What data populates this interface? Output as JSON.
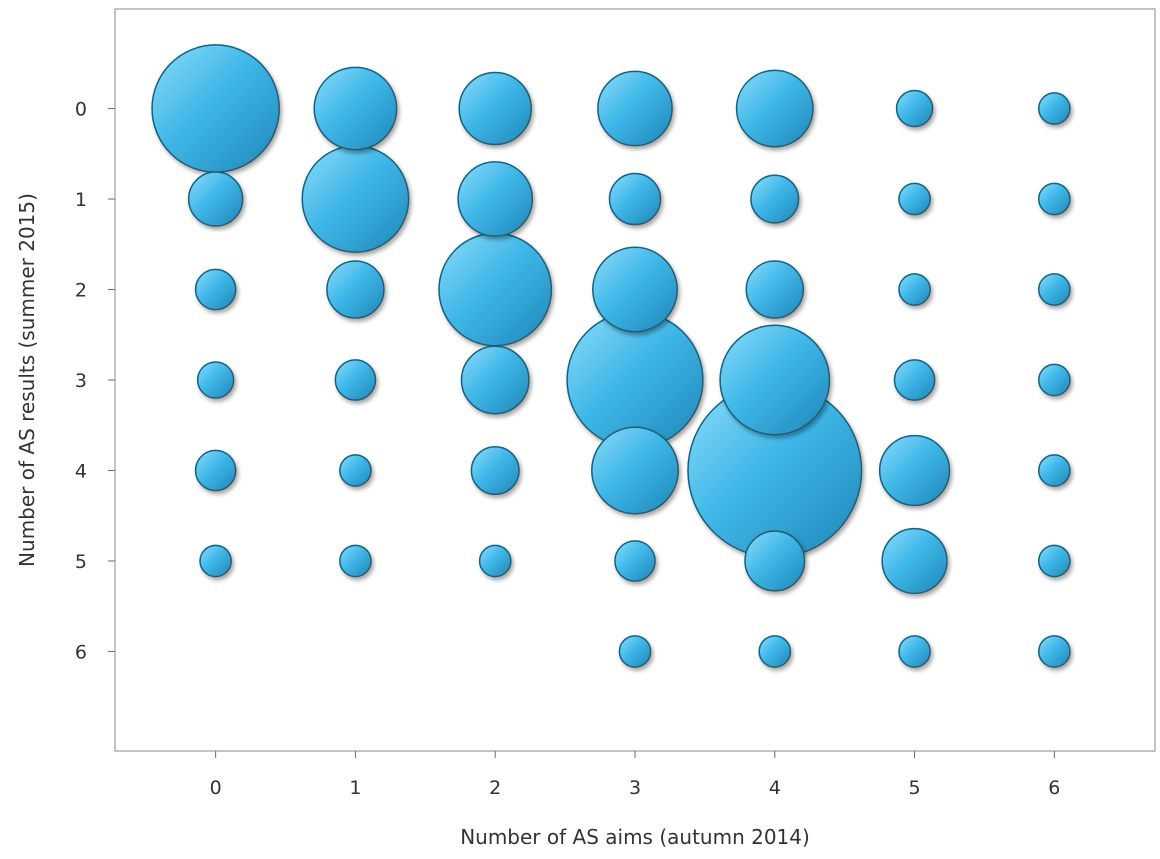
{
  "chart_data": {
    "type": "bubble",
    "title": "",
    "xlabel": "Number of AS aims (autumn 2014)",
    "ylabel": "Number of AS results (summer 2015)",
    "x_ticks": [
      "0",
      "1",
      "2",
      "3",
      "4",
      "5",
      "6"
    ],
    "y_ticks": [
      "0",
      "1",
      "2",
      "3",
      "4",
      "5",
      "6"
    ],
    "xlim": [
      -0.72,
      6.72
    ],
    "ylim": [
      -1.1,
      7.1
    ],
    "y_reversed": true,
    "grid": false,
    "bubble_color": "#3fb7e8",
    "bubble_edge_color": "#1f5f7a",
    "points": [
      {
        "x": 0,
        "y": 0,
        "size": 50
      },
      {
        "x": 1,
        "y": 0,
        "size": 21
      },
      {
        "x": 2,
        "y": 0,
        "size": 16
      },
      {
        "x": 3,
        "y": 0,
        "size": 17
      },
      {
        "x": 4,
        "y": 0,
        "size": 18
      },
      {
        "x": 5,
        "y": 0,
        "size": 4
      },
      {
        "x": 6,
        "y": 0,
        "size": 3
      },
      {
        "x": 0,
        "y": 1,
        "size": 9
      },
      {
        "x": 1,
        "y": 1,
        "size": 35
      },
      {
        "x": 2,
        "y": 1,
        "size": 17
      },
      {
        "x": 3,
        "y": 1,
        "size": 8
      },
      {
        "x": 4,
        "y": 1,
        "size": 7
      },
      {
        "x": 5,
        "y": 1,
        "size": 3
      },
      {
        "x": 6,
        "y": 1,
        "size": 3
      },
      {
        "x": 0,
        "y": 2,
        "size": 5
      },
      {
        "x": 1,
        "y": 2,
        "size": 10
      },
      {
        "x": 2,
        "y": 2,
        "size": 39
      },
      {
        "x": 3,
        "y": 2,
        "size": 22
      },
      {
        "x": 4,
        "y": 2,
        "size": 10
      },
      {
        "x": 5,
        "y": 2,
        "size": 3
      },
      {
        "x": 6,
        "y": 2,
        "size": 3
      },
      {
        "x": 0,
        "y": 3,
        "size": 4
      },
      {
        "x": 1,
        "y": 3,
        "size": 5
      },
      {
        "x": 2,
        "y": 3,
        "size": 14
      },
      {
        "x": 3,
        "y": 3,
        "size": 57
      },
      {
        "x": 4,
        "y": 3,
        "size": 37
      },
      {
        "x": 5,
        "y": 3,
        "size": 5
      },
      {
        "x": 6,
        "y": 3,
        "size": 3
      },
      {
        "x": 0,
        "y": 4,
        "size": 5
      },
      {
        "x": 1,
        "y": 4,
        "size": 3
      },
      {
        "x": 2,
        "y": 4,
        "size": 7
      },
      {
        "x": 3,
        "y": 4,
        "size": 23
      },
      {
        "x": 4,
        "y": 4,
        "size": 93
      },
      {
        "x": 5,
        "y": 4,
        "size": 15
      },
      {
        "x": 6,
        "y": 4,
        "size": 3
      },
      {
        "x": 0,
        "y": 5,
        "size": 3
      },
      {
        "x": 1,
        "y": 5,
        "size": 3
      },
      {
        "x": 2,
        "y": 5,
        "size": 3
      },
      {
        "x": 3,
        "y": 5,
        "size": 5
      },
      {
        "x": 4,
        "y": 5,
        "size": 11
      },
      {
        "x": 5,
        "y": 5,
        "size": 13
      },
      {
        "x": 6,
        "y": 5,
        "size": 3
      },
      {
        "x": 3,
        "y": 6,
        "size": 3
      },
      {
        "x": 4,
        "y": 6,
        "size": 3
      },
      {
        "x": 5,
        "y": 6,
        "size": 3
      },
      {
        "x": 6,
        "y": 6,
        "size": 3
      }
    ]
  }
}
